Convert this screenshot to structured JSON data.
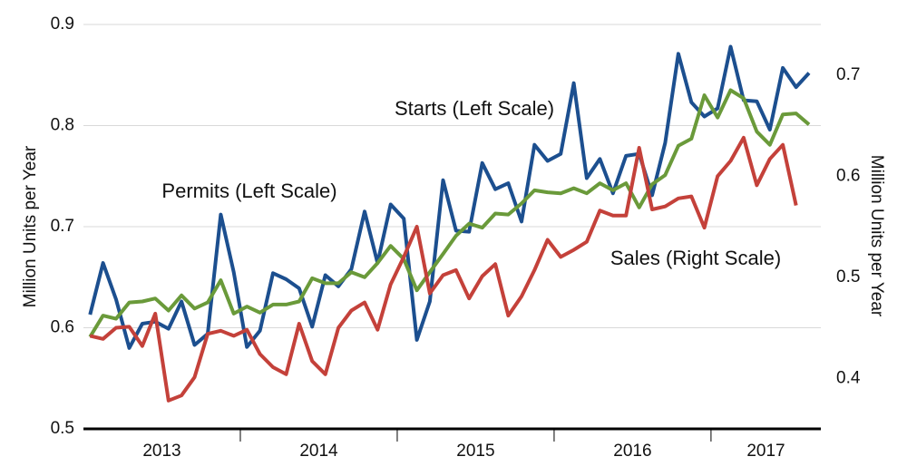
{
  "chart_data": {
    "type": "line",
    "y_label": "Million Units  per Year",
    "y2_label": "Million Units per Year",
    "annotations": [
      "Starts (Left Scale)",
      "Permits (Left Scale)",
      "Sales (Right Scale)"
    ],
    "xlim": [
      2013,
      2017.7
    ],
    "xticks": [
      {
        "value": 2013.5,
        "label": "2013"
      },
      {
        "value": 2014.5,
        "label": "2014"
      },
      {
        "value": 2015.5,
        "label": "2015"
      },
      {
        "value": 2016.5,
        "label": "2016"
      },
      {
        "value": 2017.35,
        "label": "2017"
      }
    ],
    "ylim": [
      0.5,
      0.9
    ],
    "yticks": [
      0.5,
      0.6,
      0.7,
      0.8,
      0.9
    ],
    "y2lim": [
      0.35,
      0.75
    ],
    "y2ticks": [
      0.4,
      0.5,
      0.6,
      0.7
    ],
    "grid": true,
    "x": [
      2013.042,
      2013.125,
      2013.208,
      2013.292,
      2013.375,
      2013.458,
      2013.542,
      2013.625,
      2013.708,
      2013.792,
      2013.875,
      2013.958,
      2014.042,
      2014.125,
      2014.208,
      2014.292,
      2014.375,
      2014.458,
      2014.542,
      2014.625,
      2014.708,
      2014.792,
      2014.875,
      2014.958,
      2015.042,
      2015.125,
      2015.208,
      2015.292,
      2015.375,
      2015.458,
      2015.542,
      2015.625,
      2015.708,
      2015.792,
      2015.875,
      2015.958,
      2016.042,
      2016.125,
      2016.208,
      2016.292,
      2016.375,
      2016.458,
      2016.542,
      2016.625,
      2016.708,
      2016.792,
      2016.875,
      2016.958,
      2017.042,
      2017.125,
      2017.208,
      2017.292,
      2017.375,
      2017.458,
      2017.542,
      2017.625
    ],
    "series": [
      {
        "color": "#1c4f8f",
        "values": [
          0.613,
          0.664,
          0.628,
          0.58,
          0.604,
          0.606,
          0.599,
          0.626,
          0.583,
          0.594,
          0.712,
          0.655,
          0.581,
          0.597,
          0.654,
          0.648,
          0.639,
          0.601,
          0.652,
          0.641,
          0.658,
          0.715,
          0.664,
          0.722,
          0.708,
          0.588,
          0.626,
          0.746,
          0.696,
          0.695,
          0.763,
          0.737,
          0.743,
          0.705,
          0.781,
          0.765,
          0.772,
          0.842,
          0.748,
          0.767,
          0.733,
          0.77,
          0.772,
          0.731,
          0.783,
          0.871,
          0.823,
          0.809,
          0.817,
          0.878,
          0.825,
          0.824,
          0.796,
          0.857,
          0.838,
          0.852
        ]
      },
      {
        "color": "#6a9a3a",
        "values": [
          0.591,
          0.612,
          0.609,
          0.625,
          0.626,
          0.629,
          0.617,
          0.632,
          0.619,
          0.625,
          0.647,
          0.614,
          0.621,
          0.615,
          0.623,
          0.623,
          0.626,
          0.649,
          0.644,
          0.644,
          0.655,
          0.65,
          0.664,
          0.681,
          0.668,
          0.637,
          0.655,
          0.673,
          0.691,
          0.703,
          0.699,
          0.713,
          0.712,
          0.723,
          0.736,
          0.734,
          0.733,
          0.738,
          0.733,
          0.743,
          0.736,
          0.743,
          0.719,
          0.742,
          0.751,
          0.78,
          0.787,
          0.83,
          0.808,
          0.835,
          0.827,
          0.794,
          0.781,
          0.811,
          0.812,
          0.801
        ]
      },
      {
        "color": "#c4413a",
        "axis": "y2",
        "values": [
          0.442,
          0.439,
          0.45,
          0.451,
          0.432,
          0.464,
          0.378,
          0.383,
          0.401,
          0.444,
          0.447,
          0.442,
          0.448,
          0.424,
          0.411,
          0.404,
          0.454,
          0.417,
          0.404,
          0.45,
          0.467,
          0.475,
          0.448,
          0.493,
          0.52,
          0.55,
          0.484,
          0.502,
          0.507,
          0.479,
          0.501,
          0.513,
          0.462,
          0.481,
          0.507,
          0.537,
          0.52,
          0.527,
          0.535,
          0.566,
          0.561,
          0.561,
          0.628,
          0.567,
          0.57,
          0.578,
          0.58,
          0.549,
          0.6,
          0.615,
          0.638,
          0.591,
          0.617,
          0.631,
          0.571,
          null
        ]
      }
    ]
  }
}
